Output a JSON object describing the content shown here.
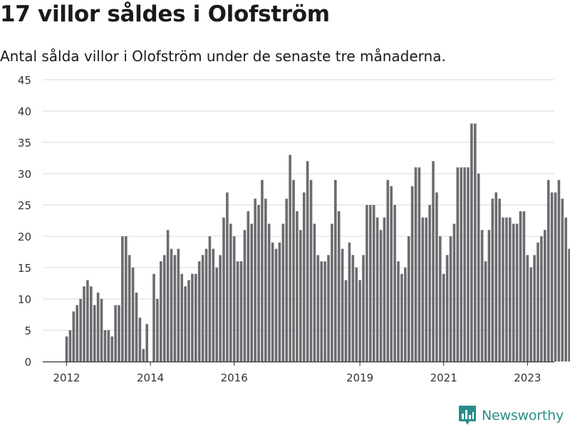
{
  "header": {
    "title": "17 villor såldes i Olofström",
    "subtitle": "Antal sålda villor i Olofström under de senaste tre månaderna."
  },
  "brand": {
    "name": "Newsworthy",
    "icon": "newsworthy-bar-chart-icon",
    "color": "#2a8e8a"
  },
  "colors": {
    "bar": "#6b6b70",
    "highlight": "#1f9690",
    "grid": "#d9d9d9",
    "axis": "#333333"
  },
  "chart_data": {
    "type": "bar",
    "title": "17 villor såldes i Olofström",
    "subtitle": "Antal sålda villor i Olofström under de senaste tre månaderna.",
    "xlabel": "",
    "ylabel": "",
    "ylim": [
      0,
      45
    ],
    "yticks": [
      0,
      5,
      10,
      15,
      20,
      25,
      30,
      35,
      40,
      45
    ],
    "grid": true,
    "legend": "none",
    "x_start": "2012-01",
    "x_end": "2025-03",
    "xticks": [
      {
        "label": "2012",
        "month": "2012-01"
      },
      {
        "label": "2014",
        "month": "2014-01"
      },
      {
        "label": "2016",
        "month": "2016-01"
      },
      {
        "label": "2019",
        "month": "2019-01"
      },
      {
        "label": "2021",
        "month": "2021-01"
      },
      {
        "label": "2023",
        "month": "2023-01"
      },
      {
        "label": "2025",
        "month": "2025-01"
      }
    ],
    "values": [
      4,
      5,
      8,
      9,
      10,
      12,
      13,
      12,
      9,
      11,
      10,
      5,
      5,
      4,
      9,
      9,
      20,
      20,
      17,
      15,
      11,
      7,
      2,
      6,
      null,
      14,
      10,
      16,
      17,
      21,
      18,
      17,
      18,
      14,
      12,
      13,
      14,
      14,
      16,
      17,
      18,
      20,
      18,
      15,
      17,
      23,
      27,
      22,
      20,
      16,
      16,
      21,
      24,
      22,
      26,
      25,
      29,
      26,
      22,
      19,
      18,
      19,
      22,
      26,
      33,
      29,
      24,
      21,
      27,
      32,
      29,
      22,
      17,
      16,
      16,
      17,
      22,
      29,
      24,
      18,
      13,
      19,
      17,
      15,
      13,
      17,
      25,
      25,
      25,
      23,
      21,
      23,
      29,
      28,
      25,
      16,
      14,
      15,
      20,
      28,
      31,
      31,
      23,
      23,
      25,
      32,
      27,
      20,
      14,
      17,
      20,
      22,
      31,
      31,
      31,
      31,
      38,
      38,
      30,
      21,
      16,
      21,
      26,
      27,
      26,
      23,
      23,
      23,
      22,
      22,
      24,
      24,
      17,
      15,
      17,
      19,
      20,
      21,
      29,
      27,
      27,
      29,
      26,
      23,
      18,
      18,
      21,
      23,
      24,
      30,
      30,
      28,
      29,
      30,
      25,
      16,
      14,
      12,
      13,
      17
    ],
    "highlight": {
      "month": "2025-03",
      "value": 17,
      "label": "17"
    }
  }
}
